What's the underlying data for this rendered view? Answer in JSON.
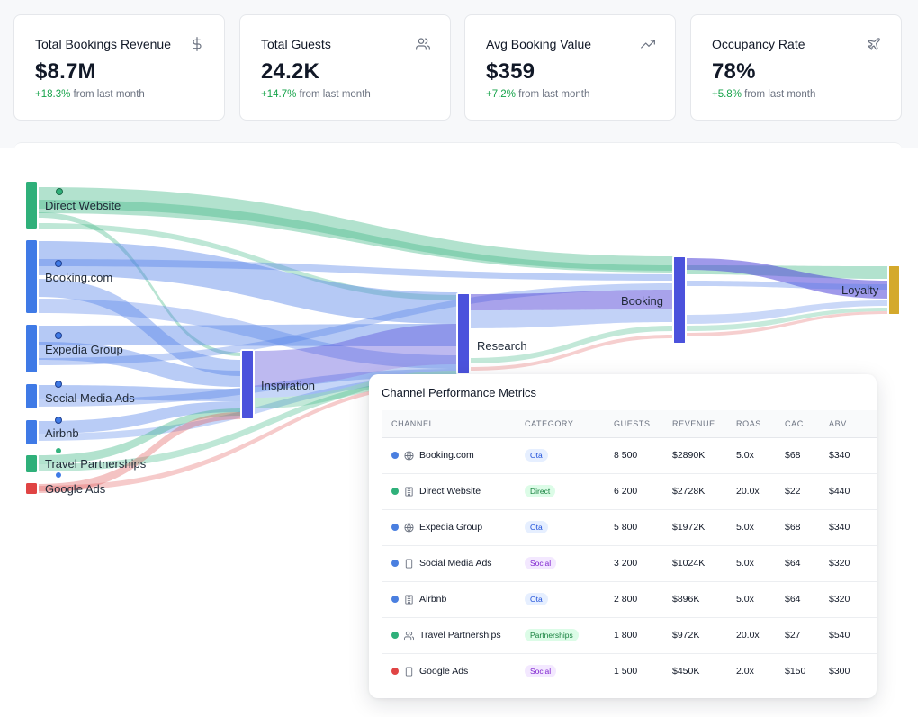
{
  "stats": [
    {
      "title": "Total Bookings Revenue",
      "value": "$8.7M",
      "change": "+18.3%",
      "suffix": "from last month",
      "icon": "dollar-icon"
    },
    {
      "title": "Total Guests",
      "value": "24.2K",
      "change": "+14.7%",
      "suffix": "from last month",
      "icon": "users-icon"
    },
    {
      "title": "Avg Booking Value",
      "value": "$359",
      "change": "+7.2%",
      "suffix": "from last month",
      "icon": "trending-up-icon"
    },
    {
      "title": "Occupancy Rate",
      "value": "78%",
      "change": "+5.8%",
      "suffix": "from last month",
      "icon": "plane-icon"
    }
  ],
  "sankey": {
    "sources": [
      "Direct Website",
      "Booking.com",
      "Expedia Group",
      "Social Media Ads",
      "Airbnb",
      "Travel Partnerships",
      "Google Ads"
    ],
    "stages": [
      "Inspiration",
      "Research",
      "Booking",
      "Loyalty"
    ],
    "colors": {
      "green": "#34b37e",
      "blue": "#4f7fe8",
      "red": "#e05252",
      "purple": "#5146d8",
      "gold": "#d4a92c"
    }
  },
  "metrics": {
    "title": "Channel Performance Metrics",
    "columns": [
      "Channel",
      "Category",
      "Guests",
      "Revenue",
      "ROAS",
      "CAC",
      "ABV"
    ],
    "rows": [
      {
        "channel": "Booking.com",
        "dot": "#4a7fe0",
        "icon": "globe-icon",
        "category": "Ota",
        "cat_class": "ota",
        "guests": "8 500",
        "revenue": "$2890K",
        "roas": "5.0x",
        "roas_class": "roas-blue",
        "cac": "$68",
        "abv": "$340"
      },
      {
        "channel": "Direct Website",
        "dot": "#2fb07a",
        "icon": "building-icon",
        "category": "Direct",
        "cat_class": "direct",
        "guests": "6 200",
        "revenue": "$2728K",
        "roas": "20.0x",
        "roas_class": "roas-green",
        "cac": "$22",
        "abv": "$440"
      },
      {
        "channel": "Expedia Group",
        "dot": "#4a7fe0",
        "icon": "globe-icon",
        "category": "Ota",
        "cat_class": "ota",
        "guests": "5 800",
        "revenue": "$1972K",
        "roas": "5.0x",
        "roas_class": "roas-blue",
        "cac": "$68",
        "abv": "$340"
      },
      {
        "channel": "Social Media Ads",
        "dot": "#4a7fe0",
        "icon": "smartphone-icon",
        "category": "Social",
        "cat_class": "social",
        "guests": "3 200",
        "revenue": "$1024K",
        "roas": "5.0x",
        "roas_class": "roas-blue",
        "cac": "$64",
        "abv": "$320"
      },
      {
        "channel": "Airbnb",
        "dot": "#4a7fe0",
        "icon": "building-icon",
        "category": "Ota",
        "cat_class": "ota",
        "guests": "2 800",
        "revenue": "$896K",
        "roas": "5.0x",
        "roas_class": "roas-blue",
        "cac": "$64",
        "abv": "$320"
      },
      {
        "channel": "Travel Partnerships",
        "dot": "#2fb07a",
        "icon": "users-icon",
        "category": "Partnerships",
        "cat_class": "partnerships",
        "guests": "1 800",
        "revenue": "$972K",
        "roas": "20.0x",
        "roas_class": "roas-green",
        "cac": "$27",
        "abv": "$540"
      },
      {
        "channel": "Google Ads",
        "dot": "#e04444",
        "icon": "smartphone-icon",
        "category": "Social",
        "cat_class": "social",
        "guests": "1 500",
        "revenue": "$450K",
        "roas": "2.0x",
        "roas_class": "roas-red",
        "cac": "$150",
        "abv": "$300"
      }
    ]
  }
}
